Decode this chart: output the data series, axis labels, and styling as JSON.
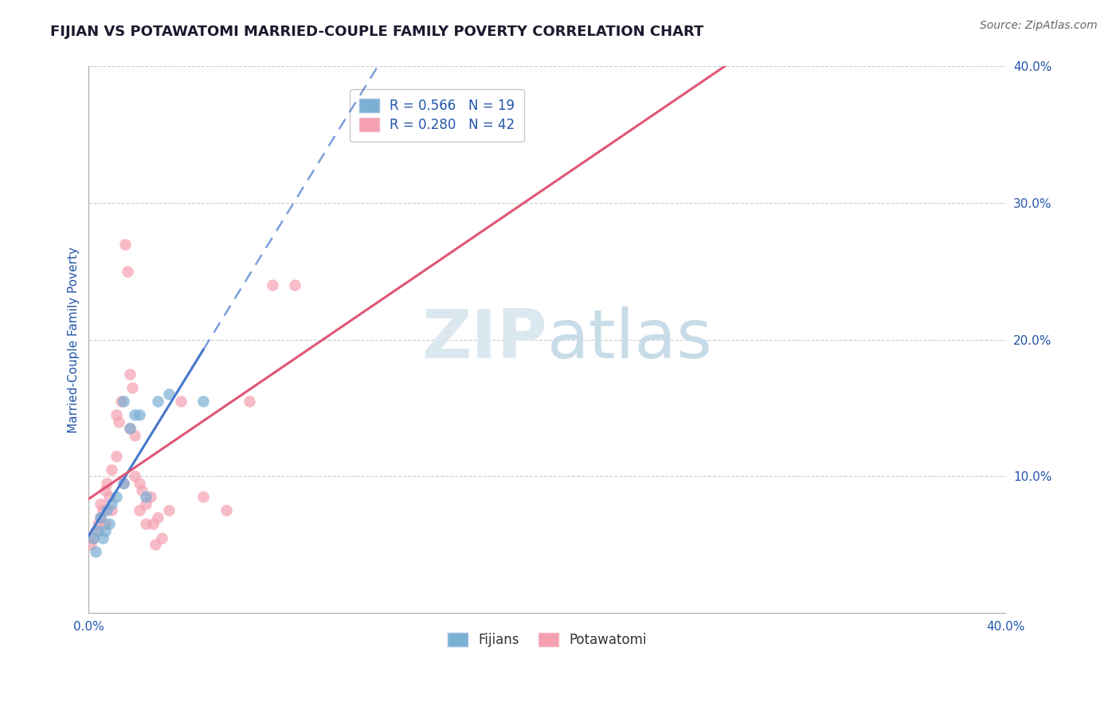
{
  "title": "FIJIAN VS POTAWATOMI MARRIED-COUPLE FAMILY POVERTY CORRELATION CHART",
  "source": "Source: ZipAtlas.com",
  "ylabel_label": "Married-Couple Family Poverty",
  "xlim": [
    0.0,
    0.4
  ],
  "ylim": [
    0.0,
    0.4
  ],
  "xticks": [
    0.0,
    0.05,
    0.1,
    0.15,
    0.2,
    0.25,
    0.3,
    0.35,
    0.4
  ],
  "yticks": [
    0.0,
    0.1,
    0.2,
    0.3,
    0.4
  ],
  "xtick_labels_show": [
    "0.0%",
    "",
    "",
    "",
    "",
    "",
    "",
    "",
    "40.0%"
  ],
  "ytick_labels": [
    "",
    "10.0%",
    "20.0%",
    "30.0%",
    "40.0%"
  ],
  "grid_color": "#cccccc",
  "background_color": "#ffffff",
  "watermark_color": "#dce8f0",
  "fijian_color": "#7bafd4",
  "potawatomi_color": "#f4a0b0",
  "fijian_line_color": "#4477cc",
  "potawatomi_line_color": "#e05575",
  "legend_fijian_R": "0.566",
  "legend_fijian_N": "19",
  "legend_potawatomi_R": "0.280",
  "legend_potawatomi_N": "42",
  "fijian_points": [
    [
      0.002,
      0.055
    ],
    [
      0.003,
      0.045
    ],
    [
      0.004,
      0.06
    ],
    [
      0.005,
      0.07
    ],
    [
      0.006,
      0.055
    ],
    [
      0.007,
      0.06
    ],
    [
      0.008,
      0.075
    ],
    [
      0.009,
      0.065
    ],
    [
      0.01,
      0.08
    ],
    [
      0.012,
      0.085
    ],
    [
      0.015,
      0.095
    ],
    [
      0.015,
      0.155
    ],
    [
      0.018,
      0.135
    ],
    [
      0.02,
      0.145
    ],
    [
      0.022,
      0.145
    ],
    [
      0.025,
      0.085
    ],
    [
      0.03,
      0.155
    ],
    [
      0.035,
      0.16
    ],
    [
      0.05,
      0.155
    ]
  ],
  "potawatomi_points": [
    [
      0.001,
      0.05
    ],
    [
      0.002,
      0.055
    ],
    [
      0.003,
      0.06
    ],
    [
      0.004,
      0.065
    ],
    [
      0.005,
      0.08
    ],
    [
      0.005,
      0.07
    ],
    [
      0.006,
      0.075
    ],
    [
      0.007,
      0.09
    ],
    [
      0.007,
      0.065
    ],
    [
      0.008,
      0.095
    ],
    [
      0.009,
      0.085
    ],
    [
      0.01,
      0.105
    ],
    [
      0.01,
      0.075
    ],
    [
      0.012,
      0.115
    ],
    [
      0.012,
      0.145
    ],
    [
      0.013,
      0.14
    ],
    [
      0.014,
      0.155
    ],
    [
      0.015,
      0.095
    ],
    [
      0.016,
      0.27
    ],
    [
      0.017,
      0.25
    ],
    [
      0.018,
      0.135
    ],
    [
      0.018,
      0.175
    ],
    [
      0.019,
      0.165
    ],
    [
      0.02,
      0.13
    ],
    [
      0.02,
      0.1
    ],
    [
      0.022,
      0.095
    ],
    [
      0.022,
      0.075
    ],
    [
      0.023,
      0.09
    ],
    [
      0.025,
      0.08
    ],
    [
      0.025,
      0.065
    ],
    [
      0.027,
      0.085
    ],
    [
      0.028,
      0.065
    ],
    [
      0.029,
      0.05
    ],
    [
      0.03,
      0.07
    ],
    [
      0.032,
      0.055
    ],
    [
      0.035,
      0.075
    ],
    [
      0.04,
      0.155
    ],
    [
      0.05,
      0.085
    ],
    [
      0.06,
      0.075
    ],
    [
      0.07,
      0.155
    ],
    [
      0.08,
      0.24
    ],
    [
      0.09,
      0.24
    ]
  ],
  "title_color": "#1a1a2e",
  "axis_label_color": "#2255aa",
  "tick_color": "#2255aa",
  "title_fontsize": 13,
  "axis_label_fontsize": 11,
  "tick_fontsize": 11,
  "legend_fontsize": 12,
  "source_fontsize": 10
}
